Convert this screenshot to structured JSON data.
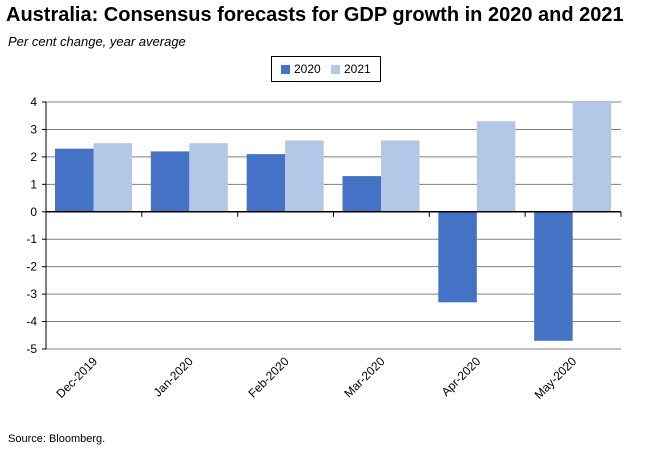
{
  "title": "Australia:  Consensus  forecasts  for GDP growth in 2020 and 2021",
  "subtitle": "Per cent change, year average",
  "source": "Source: Bloomberg.",
  "colors": {
    "s2020": "#4472c4",
    "s2021": "#b4c7e7",
    "grid": "#808080",
    "axis": "#000000"
  },
  "chart_data": {
    "type": "bar",
    "categories": [
      "Dec-2019",
      "Jan-2020",
      "Feb-2020",
      "Mar-2020",
      "Apr-2020",
      "May-2020"
    ],
    "series": [
      {
        "name": "2020",
        "values": [
          2.3,
          2.2,
          2.1,
          1.3,
          -3.3,
          -4.7
        ]
      },
      {
        "name": "2021",
        "values": [
          2.5,
          2.5,
          2.6,
          2.6,
          3.3,
          4.0
        ]
      }
    ],
    "title": "Australia:  Consensus  forecasts  for GDP growth in 2020 and 2021",
    "ylabel": "Per cent change, year average",
    "xlabel": "",
    "ylim": [
      -5,
      4
    ],
    "yticks": [
      4,
      3,
      2,
      1,
      0,
      -1,
      -2,
      -3,
      -4,
      -5
    ],
    "grid": true,
    "legend": "top-center"
  }
}
